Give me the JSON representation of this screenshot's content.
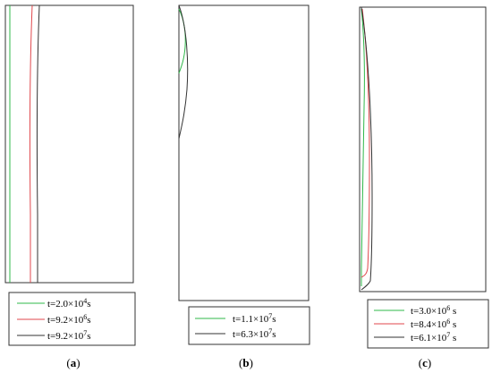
{
  "colors": {
    "green": "#2fb84a",
    "red": "#e0474c",
    "black": "#333333"
  },
  "panels": [
    {
      "label": {
        "open": "(",
        "letter": "a",
        "close": ")"
      },
      "legend": [
        {
          "color": "green",
          "base": "t=2.0×10",
          "sup": "4",
          "unit": "s"
        },
        {
          "color": "red",
          "base": "t=9.2×10",
          "sup": "6",
          "unit": "s"
        },
        {
          "color": "black",
          "base": "t=9.2×10",
          "sup": "7",
          "unit": "s"
        }
      ]
    },
    {
      "label": {
        "open": "(",
        "letter": "b",
        "close": ")"
      },
      "legend": [
        {
          "color": "green",
          "base": "t=1.1×10",
          "sup": "7",
          "unit": "s"
        },
        {
          "color": "black",
          "base": "t=6.3×10",
          "sup": "7",
          "unit": "s"
        }
      ]
    },
    {
      "label": {
        "open": "(",
        "letter": "c",
        "close": ")"
      },
      "legend": [
        {
          "color": "green",
          "base": "t=3.0×10",
          "sup": "6",
          "unit": " s"
        },
        {
          "color": "red",
          "base": "t=8.4×10",
          "sup": "6",
          "unit": " s"
        },
        {
          "color": "black",
          "base": "t=6.1×10",
          "sup": "7",
          "unit": " s"
        }
      ]
    }
  ]
}
